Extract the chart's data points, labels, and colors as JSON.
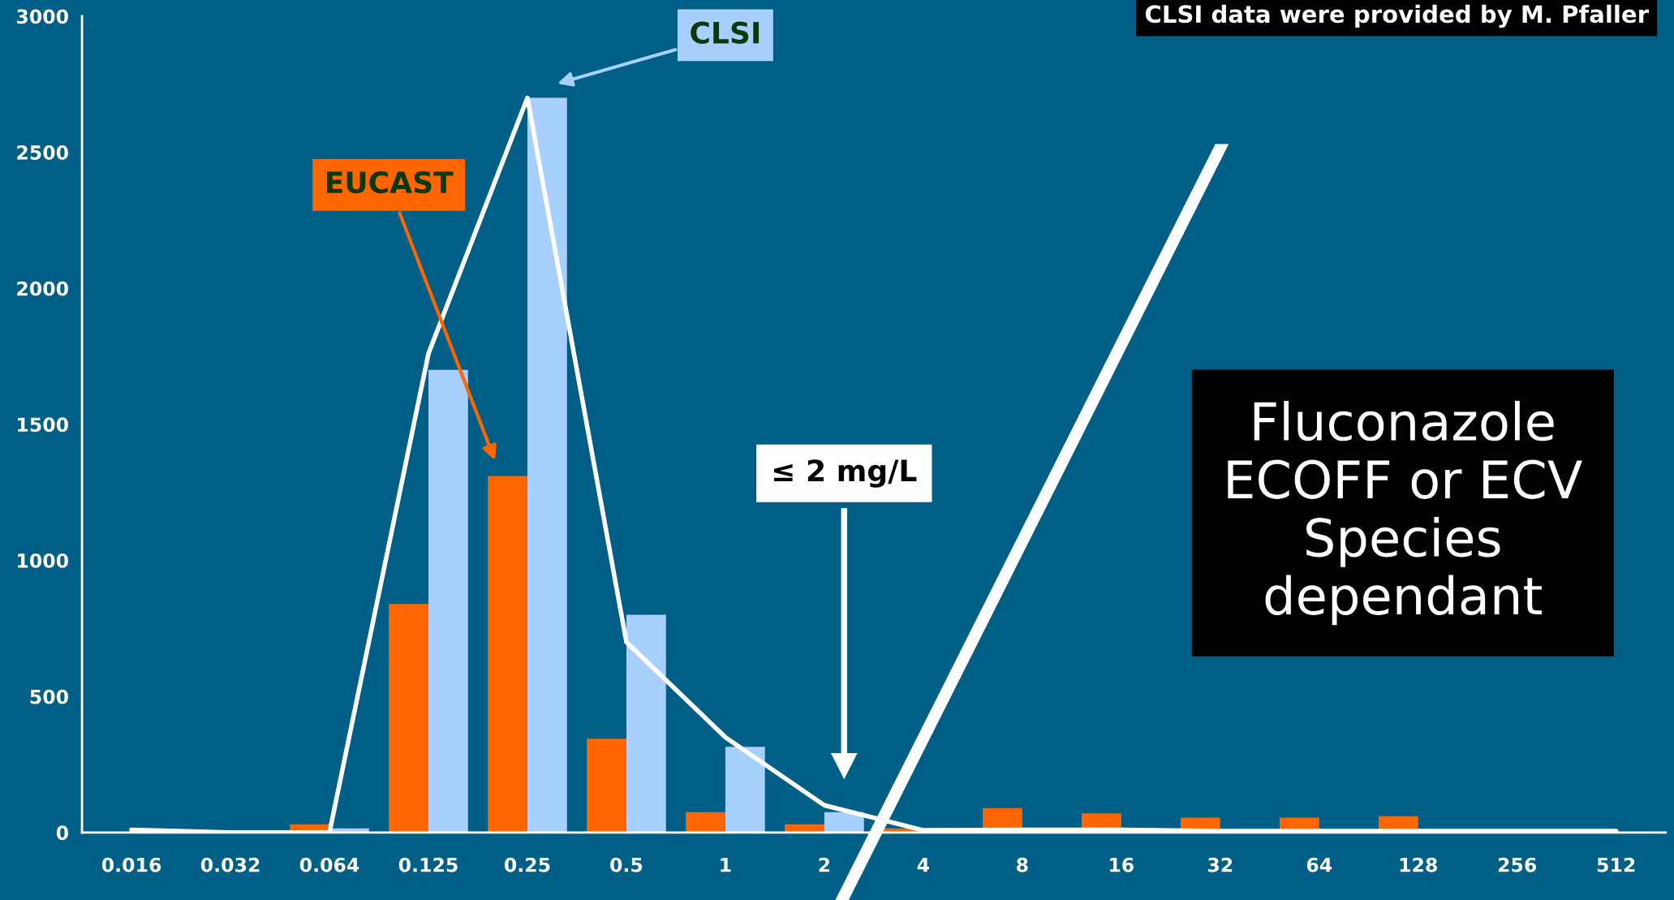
{
  "chart_data": {
    "type": "bar",
    "categories": [
      "0.016",
      "0.032",
      "0.064",
      "0.125",
      "0.25",
      "0.5",
      "1",
      "2",
      "4",
      "8",
      "16",
      "32",
      "64",
      "128",
      "256",
      "512"
    ],
    "series": [
      {
        "name": "EUCAST",
        "color": "#ff6600",
        "values": [
          0,
          0,
          30,
          840,
          1310,
          345,
          75,
          30,
          15,
          90,
          70,
          55,
          55,
          60,
          0,
          0
        ]
      },
      {
        "name": "CLSI",
        "color": "#a8d0ff",
        "values": [
          0,
          0,
          15,
          1700,
          2700,
          800,
          315,
          75,
          0,
          0,
          0,
          0,
          0,
          0,
          0,
          0
        ]
      },
      {
        "type": "line",
        "color": "#ffffff",
        "values": [
          10,
          0,
          0,
          1760,
          2700,
          700,
          350,
          100,
          8,
          10,
          10,
          5,
          5,
          5,
          5,
          5
        ]
      }
    ],
    "ylim": [
      0,
      3000
    ],
    "yticks": [
      0,
      500,
      1000,
      1500,
      2000,
      2500,
      3000
    ],
    "grid": false,
    "legend": false,
    "annotations": [
      "CLSI data were provided by M. Pfaller",
      "≤ 2 mg/L",
      "Fluconazole\nECOFF or ECV\nSpecies\ndependant"
    ]
  }
}
